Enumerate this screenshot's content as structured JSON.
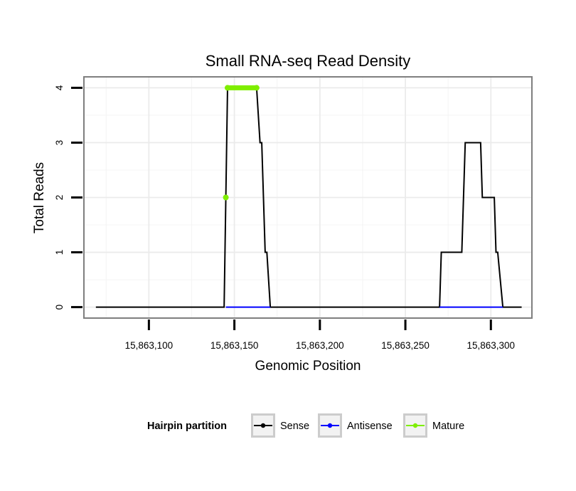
{
  "chart_data": {
    "type": "line",
    "title": "Small RNA-seq Read Density",
    "xlabel": "Genomic Position",
    "ylabel": "Total Reads",
    "xlim": [
      15863062,
      15863324
    ],
    "ylim": [
      -0.2,
      4.2
    ],
    "x_ticks": [
      15863100,
      15863150,
      15863200,
      15863250,
      15863300
    ],
    "x_tick_labels": [
      "15,863,100",
      "15,863,150",
      "15,863,200",
      "15,863,250",
      "15,863,300"
    ],
    "y_ticks": [
      0,
      1,
      2,
      3,
      4
    ],
    "y_tick_labels": [
      "0",
      "1",
      "2",
      "3",
      "4"
    ],
    "grid": true,
    "legend": {
      "title": "Hairpin partition",
      "position": "bottom",
      "entries": [
        "Sense",
        "Antisense",
        "Mature"
      ]
    },
    "series": [
      {
        "name": "Sense",
        "color": "#000000",
        "x": [
          15863069,
          15863144,
          15863146,
          15863163,
          15863165,
          15863166,
          15863167,
          15863168,
          15863169,
          15863171,
          15863270,
          15863271,
          15863283,
          15863285,
          15863294,
          15863295,
          15863302,
          15863303,
          15863304,
          15863307,
          15863318
        ],
        "y": [
          0,
          0,
          4,
          4,
          3,
          3,
          2,
          1,
          1,
          0,
          0,
          1,
          1,
          3,
          3,
          2,
          2,
          1,
          1,
          0,
          0
        ]
      },
      {
        "name": "Antisense",
        "color": "#0000ff",
        "x": [
          15863145,
          15863171,
          15863270,
          15863307
        ],
        "y": [
          0,
          0,
          0,
          0
        ],
        "segments": [
          [
            0,
            1
          ],
          [
            2,
            3
          ]
        ]
      },
      {
        "name": "Mature",
        "color": "#7fee00",
        "x": [
          15863145,
          15863146,
          15863163
        ],
        "y": [
          2,
          4,
          4
        ]
      }
    ]
  }
}
